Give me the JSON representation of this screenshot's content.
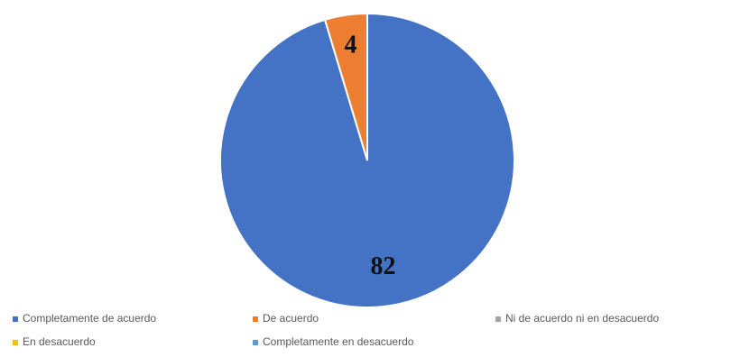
{
  "chart_data": {
    "type": "pie",
    "categories": [
      "Completamente de acuerdo",
      "De acuerdo",
      "Ni de acuerdo ni en desacuerdo",
      "En desacuerdo",
      "Completamente en desacuerdo"
    ],
    "values": [
      82,
      4,
      0,
      0,
      0
    ],
    "colors": [
      "#4472c4",
      "#ed7d31",
      "#a5a5a5",
      "#ffc000",
      "#5b9bd5"
    ],
    "legend": "bottom"
  }
}
